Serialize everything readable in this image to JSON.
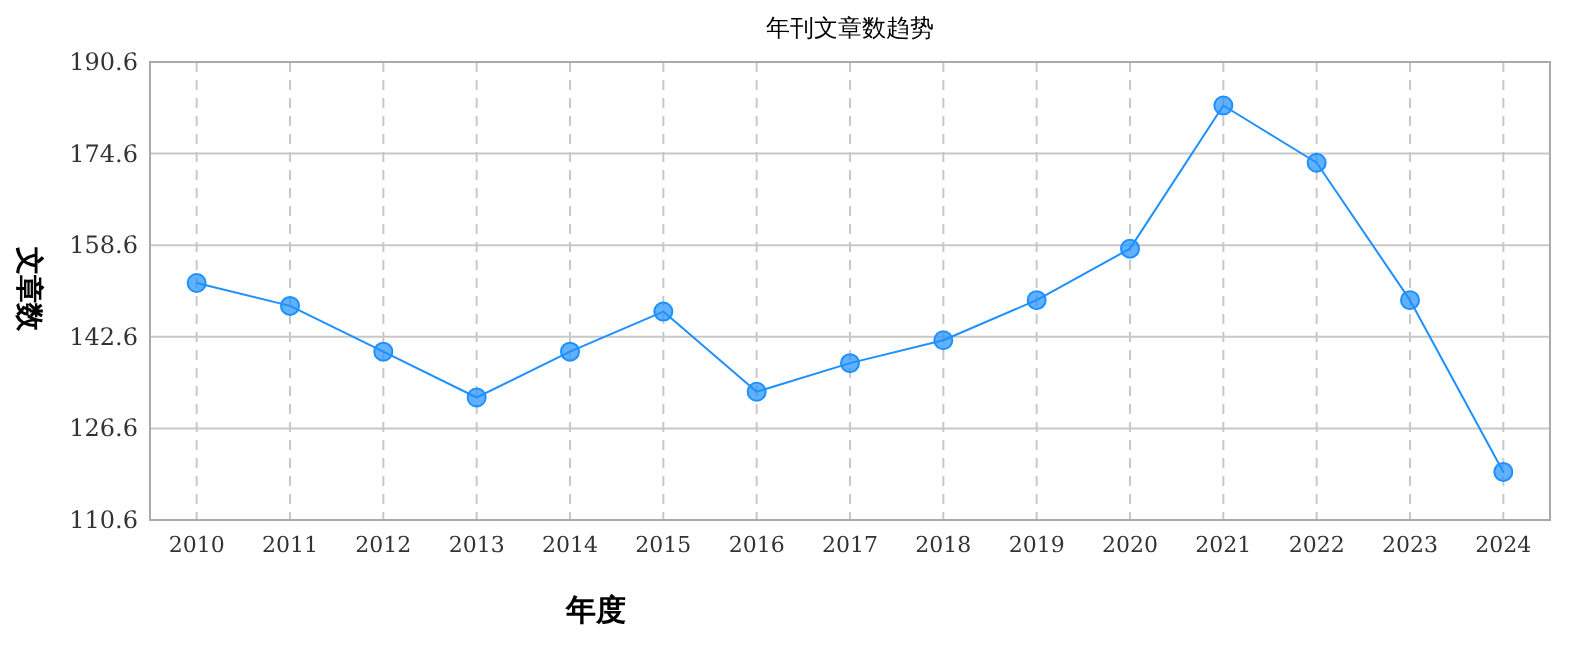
{
  "chart_data": {
    "type": "line",
    "title": "年刊文章数趋势",
    "xlabel": "年度",
    "ylabel": "文章数",
    "categories": [
      "2010",
      "2011",
      "2012",
      "2013",
      "2014",
      "2015",
      "2016",
      "2017",
      "2018",
      "2019",
      "2020",
      "2021",
      "2022",
      "2023",
      "2024"
    ],
    "series": [
      {
        "color": "#1e90ff",
        "values": [
          152,
          148,
          140,
          132,
          140,
          147,
          133,
          138,
          142,
          149,
          158,
          183,
          173,
          149,
          119
        ]
      }
    ],
    "ylim": [
      110.6,
      190.6
    ],
    "yticks": [
      110.6,
      126.6,
      142.6,
      158.6,
      174.6,
      190.6
    ],
    "grid": true,
    "marker": "circle",
    "line_style": "solid"
  }
}
